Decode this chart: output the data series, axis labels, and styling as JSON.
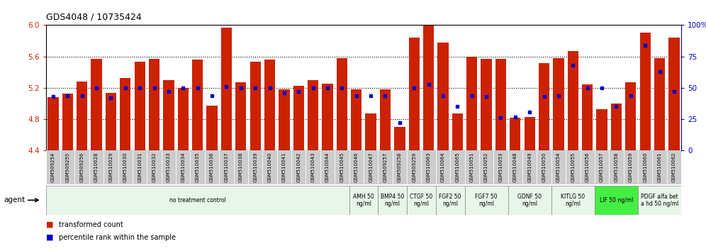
{
  "title": "GDS4048 / 10735424",
  "ylim_left": [
    4.4,
    6.0
  ],
  "ylim_right": [
    0,
    100
  ],
  "yticks_left": [
    4.4,
    4.8,
    5.2,
    5.6,
    6.0
  ],
  "yticks_right": [
    0,
    25,
    50,
    75,
    100
  ],
  "samples": [
    "GSM509254",
    "GSM509255",
    "GSM509256",
    "GSM510028",
    "GSM510029",
    "GSM510030",
    "GSM510031",
    "GSM510032",
    "GSM510033",
    "GSM510034",
    "GSM510035",
    "GSM510036",
    "GSM510037",
    "GSM510038",
    "GSM510039",
    "GSM510040",
    "GSM510041",
    "GSM510042",
    "GSM510043",
    "GSM510044",
    "GSM510045",
    "GSM510046",
    "GSM510047",
    "GSM509257",
    "GSM509258",
    "GSM509259",
    "GSM510063",
    "GSM510064",
    "GSM510065",
    "GSM510051",
    "GSM510052",
    "GSM510053",
    "GSM510048",
    "GSM510049",
    "GSM510050",
    "GSM510054",
    "GSM510055",
    "GSM510056",
    "GSM510057",
    "GSM510058",
    "GSM510059",
    "GSM510060",
    "GSM510061",
    "GSM510062"
  ],
  "red_values": [
    5.08,
    5.13,
    5.28,
    5.57,
    5.14,
    5.33,
    5.53,
    5.57,
    5.3,
    5.2,
    5.56,
    4.97,
    5.97,
    5.27,
    5.53,
    5.56,
    5.18,
    5.23,
    5.3,
    5.25,
    5.58,
    5.18,
    4.87,
    5.18,
    4.7,
    5.84,
    6.05,
    5.78,
    4.87,
    5.6,
    5.57,
    5.57,
    4.82,
    4.83,
    5.52,
    5.58,
    5.67,
    5.24,
    4.93,
    5.0,
    5.27,
    5.9,
    5.58,
    5.84
  ],
  "blue_values": [
    43,
    44,
    44,
    50,
    42,
    50,
    50,
    50,
    47,
    50,
    50,
    44,
    51,
    50,
    50,
    50,
    46,
    47,
    50,
    50,
    50,
    44,
    44,
    44,
    22,
    50,
    53,
    44,
    35,
    44,
    43,
    26,
    27,
    31,
    43,
    44,
    68,
    50,
    50,
    35,
    44,
    84,
    63,
    47
  ],
  "agent_groups": [
    {
      "label": "no treatment control",
      "start": 0,
      "end": 21,
      "color": "#e8f5e9"
    },
    {
      "label": "AMH 50\nng/ml",
      "start": 21,
      "end": 23,
      "color": "#e8f5e9"
    },
    {
      "label": "BMP4 50\nng/ml",
      "start": 23,
      "end": 25,
      "color": "#e8f5e9"
    },
    {
      "label": "CTGF 50\nng/ml",
      "start": 25,
      "end": 27,
      "color": "#e8f5e9"
    },
    {
      "label": "FGF2 50\nng/ml",
      "start": 27,
      "end": 29,
      "color": "#e8f5e9"
    },
    {
      "label": "FGF7 50\nng/ml",
      "start": 29,
      "end": 32,
      "color": "#e8f5e9"
    },
    {
      "label": "GDNF 50\nng/ml",
      "start": 32,
      "end": 35,
      "color": "#e8f5e9"
    },
    {
      "label": "KITLG 50\nng/ml",
      "start": 35,
      "end": 38,
      "color": "#e8f5e9"
    },
    {
      "label": "LIF 50 ng/ml",
      "start": 38,
      "end": 41,
      "color": "#44ee44"
    },
    {
      "label": "PDGF alfa bet\na hd 50 ng/ml",
      "start": 41,
      "end": 44,
      "color": "#e8f5e9"
    }
  ],
  "bar_color": "#cc2200",
  "marker_color": "#0000cc",
  "bg_color": "#ffffff",
  "left_tick_color": "#cc2200",
  "right_tick_color": "#0000cc",
  "base_value": 4.4,
  "grid_dotted_at": [
    4.8,
    5.2,
    5.6
  ],
  "label_bg_color": "#cccccc",
  "label_bg_edge_color": "#ffffff"
}
